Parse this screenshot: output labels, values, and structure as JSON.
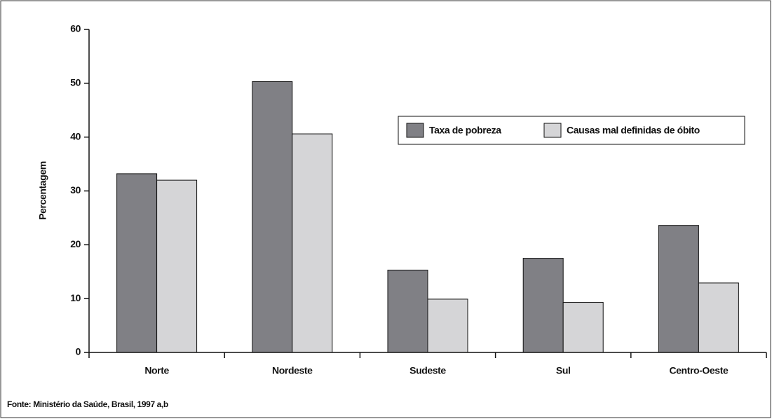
{
  "chart_data": {
    "type": "bar",
    "categories": [
      "Norte",
      "Nordeste",
      "Sudeste",
      "Sul",
      "Centro-Oeste"
    ],
    "series": [
      {
        "name": "Taxa de pobreza",
        "color": "#808085",
        "values": [
          33.2,
          50.3,
          15.3,
          17.5,
          23.6
        ]
      },
      {
        "name": "Causas mal definidas de óbito",
        "color": "#d5d5d7",
        "values": [
          32,
          40.6,
          9.9,
          9.3,
          12.9
        ]
      }
    ],
    "ylabel": "Percentagem",
    "ylim": [
      0,
      60
    ],
    "yticks": [
      0,
      10,
      20,
      30,
      40,
      50,
      60
    ],
    "legend": "upper right",
    "source": "Fonte: Ministério da Saúde, Brasil, 1997 a,b"
  }
}
